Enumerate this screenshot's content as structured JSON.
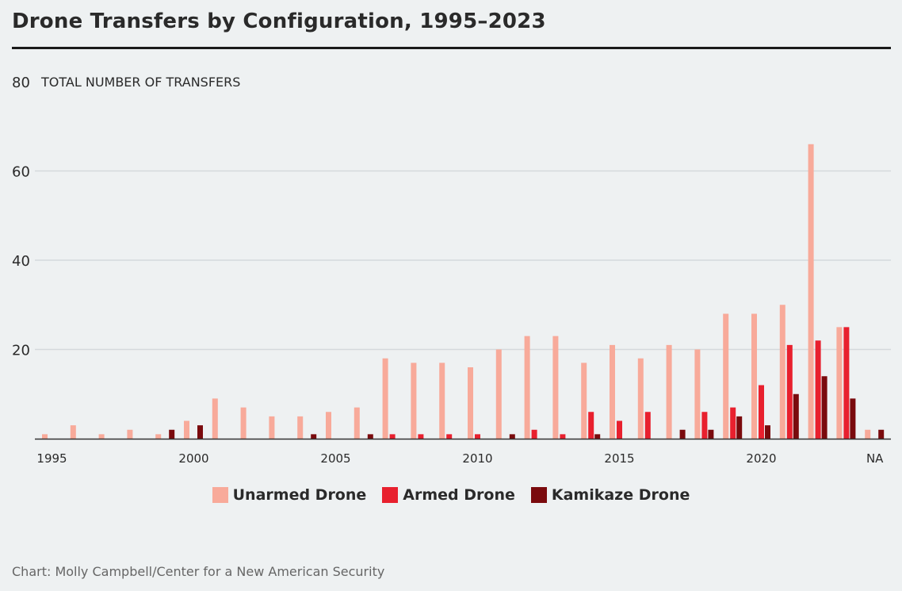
{
  "title": "Drone Transfers by Configuration, 1995–2023",
  "credit": "Chart: Molly Campbell/Center for a New American Security",
  "chart_data": {
    "type": "bar",
    "ylabel": "TOTAL NUMBER OF TRANSFERS",
    "ylim": [
      0,
      80
    ],
    "yticks": [
      20,
      40,
      60,
      80
    ],
    "grid": true,
    "legend_position": "bottom",
    "categories": [
      "1995",
      "1996",
      "1997",
      "1998",
      "1999",
      "2000",
      "2001",
      "2002",
      "2003",
      "2004",
      "2005",
      "2006",
      "2007",
      "2008",
      "2009",
      "2010",
      "2011",
      "2012",
      "2013",
      "2014",
      "2015",
      "2016",
      "2017",
      "2018",
      "2019",
      "2020",
      "2021",
      "2022",
      "2023",
      "NA"
    ],
    "xtick_labels": [
      "1995",
      "2000",
      "2005",
      "2010",
      "2015",
      "2020",
      "NA"
    ],
    "series": [
      {
        "name": "Unarmed Drone",
        "color": "#f8aa9a",
        "values": [
          1,
          3,
          1,
          2,
          1,
          4,
          9,
          7,
          5,
          5,
          6,
          7,
          18,
          17,
          17,
          16,
          20,
          23,
          23,
          17,
          21,
          18,
          21,
          20,
          28,
          28,
          30,
          66,
          25,
          2
        ]
      },
      {
        "name": "Armed Drone",
        "color": "#e8202e",
        "values": [
          0,
          0,
          0,
          0,
          0,
          0,
          0,
          0,
          0,
          0,
          0,
          0,
          1,
          1,
          1,
          1,
          0,
          2,
          1,
          6,
          4,
          6,
          0,
          6,
          7,
          12,
          21,
          22,
          25,
          0
        ]
      },
      {
        "name": "Kamikaze Drone",
        "color": "#7a0a0d",
        "values": [
          0,
          0,
          0,
          0,
          2,
          3,
          0,
          0,
          0,
          1,
          0,
          1,
          0,
          0,
          0,
          0,
          1,
          0,
          0,
          1,
          0,
          0,
          2,
          2,
          5,
          3,
          10,
          14,
          9,
          2
        ]
      }
    ]
  }
}
